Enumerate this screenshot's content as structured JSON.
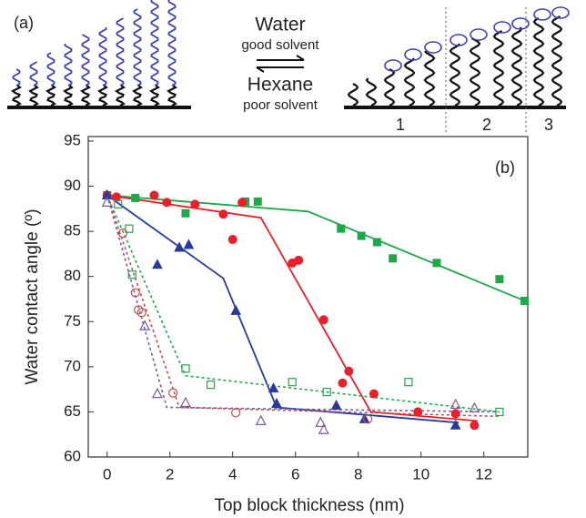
{
  "schematic": {
    "panel_label": "(a)",
    "solvent1": "Water",
    "solvent1_note": "good solvent",
    "solvent2": "Hexane",
    "solvent2_note": "poor solvent",
    "regions": [
      "1",
      "2",
      "3"
    ]
  },
  "chart_data": {
    "type": "scatter",
    "annotation": "(b)",
    "x_label": "Top block thickness (nm)",
    "y_label": "Water contact angle (º)",
    "xlim": [
      -0.6,
      13.4
    ],
    "ylim": [
      60,
      95.5
    ],
    "xticks": [
      0,
      2,
      4,
      6,
      8,
      10,
      12
    ],
    "yticks": [
      60,
      65,
      70,
      75,
      80,
      85,
      90,
      95
    ],
    "series": [
      {
        "color": "#1fa84a",
        "marker": "square",
        "filled": true,
        "x": [
          0,
          0.9,
          2.5,
          4.4,
          4.8,
          7.45,
          8.1,
          8.6,
          9.1,
          10.5,
          12.5,
          13.3
        ],
        "values": [
          89,
          88.7,
          87,
          88.3,
          88.3,
          85.3,
          84.5,
          83.8,
          82,
          81.5,
          79.7,
          77.3
        ]
      },
      {
        "color": "#e8202a",
        "marker": "circle",
        "filled": true,
        "x": [
          0,
          0.3,
          1.5,
          1.9,
          2.8,
          4.3,
          3.7,
          4.0,
          5.9,
          6.1,
          6.9,
          7.7,
          7.5,
          8.5,
          9.9,
          11.1,
          11.7
        ],
        "values": [
          89,
          88.8,
          89,
          88.2,
          88,
          88.2,
          86.9,
          84.1,
          81.5,
          81.8,
          75.2,
          69.5,
          68.2,
          67,
          65,
          64.8,
          63.5
        ]
      },
      {
        "color": "#2a3a9c",
        "marker": "triangle",
        "filled": true,
        "x": [
          0,
          1.6,
          2.3,
          2.6,
          4.1,
          5.3,
          5.4,
          7.3,
          8.2,
          11.1
        ],
        "values": [
          89,
          81.3,
          83.2,
          83.5,
          76.2,
          67.6,
          65.9,
          65.7,
          64.2,
          63.5
        ]
      },
      {
        "color": "#1fa84a",
        "marker": "square",
        "filled": false,
        "x": [
          0.35,
          0.7,
          0.8,
          2.5,
          3.3,
          5.9,
          7.0,
          9.6,
          12.5
        ],
        "values": [
          88,
          85.3,
          80.2,
          69.8,
          68,
          68.3,
          67.2,
          68.3,
          65
        ]
      },
      {
        "color": "#c0504d",
        "marker": "circle",
        "filled": false,
        "x": [
          0.5,
          0.9,
          1.0,
          1.1,
          2.1,
          4.1,
          8.3
        ],
        "values": [
          84.8,
          78.2,
          76.3,
          76,
          67.1,
          64.9,
          64.2
        ]
      },
      {
        "color": "#7a5a9a",
        "marker": "triangle",
        "filled": false,
        "x": [
          0,
          1.2,
          1.6,
          2.5,
          4.9,
          6.8,
          6.9,
          11.1,
          11.7
        ],
        "values": [
          88.2,
          74.5,
          67,
          66,
          64,
          63.8,
          63,
          65.8,
          65.4
        ]
      }
    ],
    "fits": [
      {
        "color": "#1fa84a",
        "dashed": false,
        "x": [
          0,
          6.4,
          13.3
        ],
        "values": [
          89,
          87.2,
          77.3
        ]
      },
      {
        "color": "#e8202a",
        "dashed": false,
        "x": [
          0,
          4.9,
          8.4,
          11.8
        ],
        "values": [
          89,
          86.5,
          65,
          64
        ]
      },
      {
        "color": "#2a3a9c",
        "dashed": false,
        "x": [
          0,
          3.7,
          5.4,
          11.2
        ],
        "values": [
          89,
          79.8,
          65.5,
          63.8
        ]
      },
      {
        "color": "#1fa84a",
        "dashed": true,
        "x": [
          0,
          2.5,
          12.5
        ],
        "values": [
          89,
          69,
          65
        ]
      },
      {
        "color": "#c0504d",
        "dashed": true,
        "x": [
          0,
          2.3,
          12.5
        ],
        "values": [
          89,
          65.5,
          64.5
        ]
      },
      {
        "color": "#7a5a9a",
        "dashed": true,
        "x": [
          0,
          1.9,
          12.5
        ],
        "values": [
          89,
          65.5,
          65
        ]
      }
    ]
  }
}
